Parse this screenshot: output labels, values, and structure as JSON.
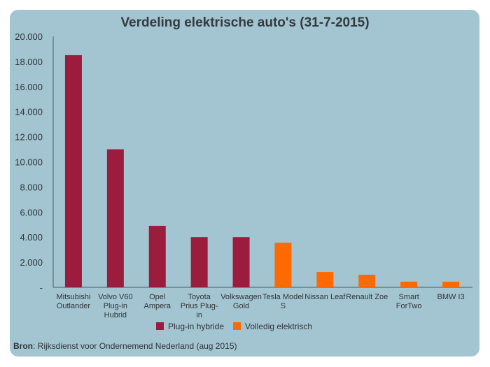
{
  "chart_data": {
    "type": "bar",
    "title": "Verdeling elektrische auto's (31-7-2015)",
    "xlabel": "",
    "ylabel": "",
    "ylim": [
      0,
      20000
    ],
    "yticks": [
      0,
      2000,
      4000,
      6000,
      8000,
      10000,
      12000,
      14000,
      16000,
      18000,
      20000
    ],
    "ytick_labels": [
      "-",
      "2.000",
      "4.000",
      "6.000",
      "8.000",
      "10.000",
      "12.000",
      "14.000",
      "16.000",
      "18.000",
      "20.000"
    ],
    "grid": false,
    "legend_position": "bottom",
    "categories": [
      [
        "Mitsubishi",
        "Outlander"
      ],
      [
        "Volvo V60",
        "Plug-in",
        "Hubrid"
      ],
      [
        "Opel",
        "Ampera"
      ],
      [
        "Toyota",
        "Prius Plug-",
        "in"
      ],
      [
        "Volkswagen",
        "Gold"
      ],
      [
        "Tesla Model",
        "S"
      ],
      [
        "Nissan Leaf"
      ],
      [
        "Renault Zoe"
      ],
      [
        "Smart",
        "ForTwo"
      ],
      [
        "BMW I3"
      ]
    ],
    "values": [
      18500,
      11000,
      4900,
      4000,
      4000,
      3550,
      1220,
      1000,
      450,
      450
    ],
    "series_index": [
      0,
      0,
      0,
      0,
      0,
      1,
      1,
      1,
      1,
      1
    ],
    "series": [
      {
        "name": "Plug-in hybride",
        "color": "#9b1c3c"
      },
      {
        "name": "Volledig elektrisch",
        "color": "#ff6a00"
      }
    ]
  },
  "source": {
    "label": "Bron",
    "text": ": Rijksdienst voor Ondernemend  Nederland (aug 2015)"
  },
  "colors": {
    "background": "#a3c4d1",
    "axis": "#4a5a60",
    "text": "#2f3537"
  }
}
